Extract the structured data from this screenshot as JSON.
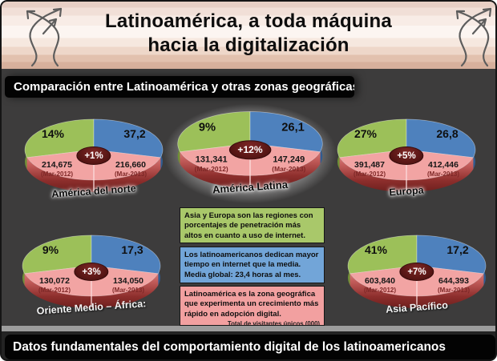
{
  "header": {
    "title_line1": "Latinoamérica, a toda máquina",
    "title_line2": "hacia la digitalización"
  },
  "section_bars": {
    "top": "Comparación entre Latinoamérica y otras zonas geográficas",
    "bottom": "Datos fundamentales del comportamiento digital de los latinoamericanos"
  },
  "chart_data": [
    {
      "type": "pie",
      "region": "América del norte",
      "penetration_pct": "14%",
      "hours_per_month": "37,2",
      "growth": "+1%",
      "visitors": [
        {
          "period": "(Mar-2012)",
          "value": "214,675"
        },
        {
          "period": "(Mar-2013)",
          "value": "216,660"
        }
      ],
      "label_style": "dark",
      "highlighted": false
    },
    {
      "type": "pie",
      "region": "América Latina",
      "penetration_pct": "9%",
      "hours_per_month": "26,1",
      "growth": "+12%",
      "visitors": [
        {
          "period": "(Mar-2012)",
          "value": "131,341"
        },
        {
          "period": "(Mar-2013)",
          "value": "147,249"
        }
      ],
      "label_style": "dark",
      "highlighted": true
    },
    {
      "type": "pie",
      "region": "Europa",
      "penetration_pct": "27%",
      "hours_per_month": "26,8",
      "growth": "+5%",
      "visitors": [
        {
          "period": "(Mar-2012)",
          "value": "391,487"
        },
        {
          "period": "(Mar-2013)",
          "value": "412,446"
        }
      ],
      "label_style": "dark",
      "highlighted": false
    },
    {
      "type": "pie",
      "region": "Oriente Medio – África:",
      "penetration_pct": "9%",
      "hours_per_month": "17,3",
      "growth": "+3%",
      "visitors": [
        {
          "period": "(Mar-2012)",
          "value": "130,072"
        },
        {
          "period": "(Mar-2013)",
          "value": "134,050"
        }
      ],
      "label_style": "light",
      "highlighted": false
    },
    {
      "type": "pie",
      "region": "Asia Pacífico",
      "penetration_pct": "41%",
      "hours_per_month": "17,2",
      "growth": "+7%",
      "visitors": [
        {
          "period": "(Mar-2012)",
          "value": "603,840"
        },
        {
          "period": "(Mar-2013)",
          "value": "644,393"
        }
      ],
      "label_style": "light",
      "highlighted": false
    }
  ],
  "notes": [
    {
      "color": "green",
      "text": "Asia y Europa son las regiones con porcentajes de penetración más altos en cuanto a uso de internet."
    },
    {
      "color": "blue",
      "text": "Los latinoamericanos dedican mayor tiempo en internet que la media. Media global: 23,4 horas al mes."
    },
    {
      "color": "pink",
      "text": "Latinoamérica es la zona geográfica que experimenta un crecimiento más rápido en adopción digital.",
      "footnote": "Total de visitantes únicos (000)"
    }
  ],
  "colors": {
    "green_slice": "#9cc059",
    "blue_slice": "#4e81bd",
    "pink_slice": "#f2a4a3",
    "wall_top": "#e59593",
    "wall_bottom": "#6e1f1d",
    "green_wall": "#6f9136",
    "blue_wall": "#2f5c91",
    "badge": "#511312",
    "background_dark": "#3d3c3c",
    "note_green": "#a9c86a",
    "note_blue": "#72a5d8",
    "note_pink": "#f2a0a0"
  }
}
